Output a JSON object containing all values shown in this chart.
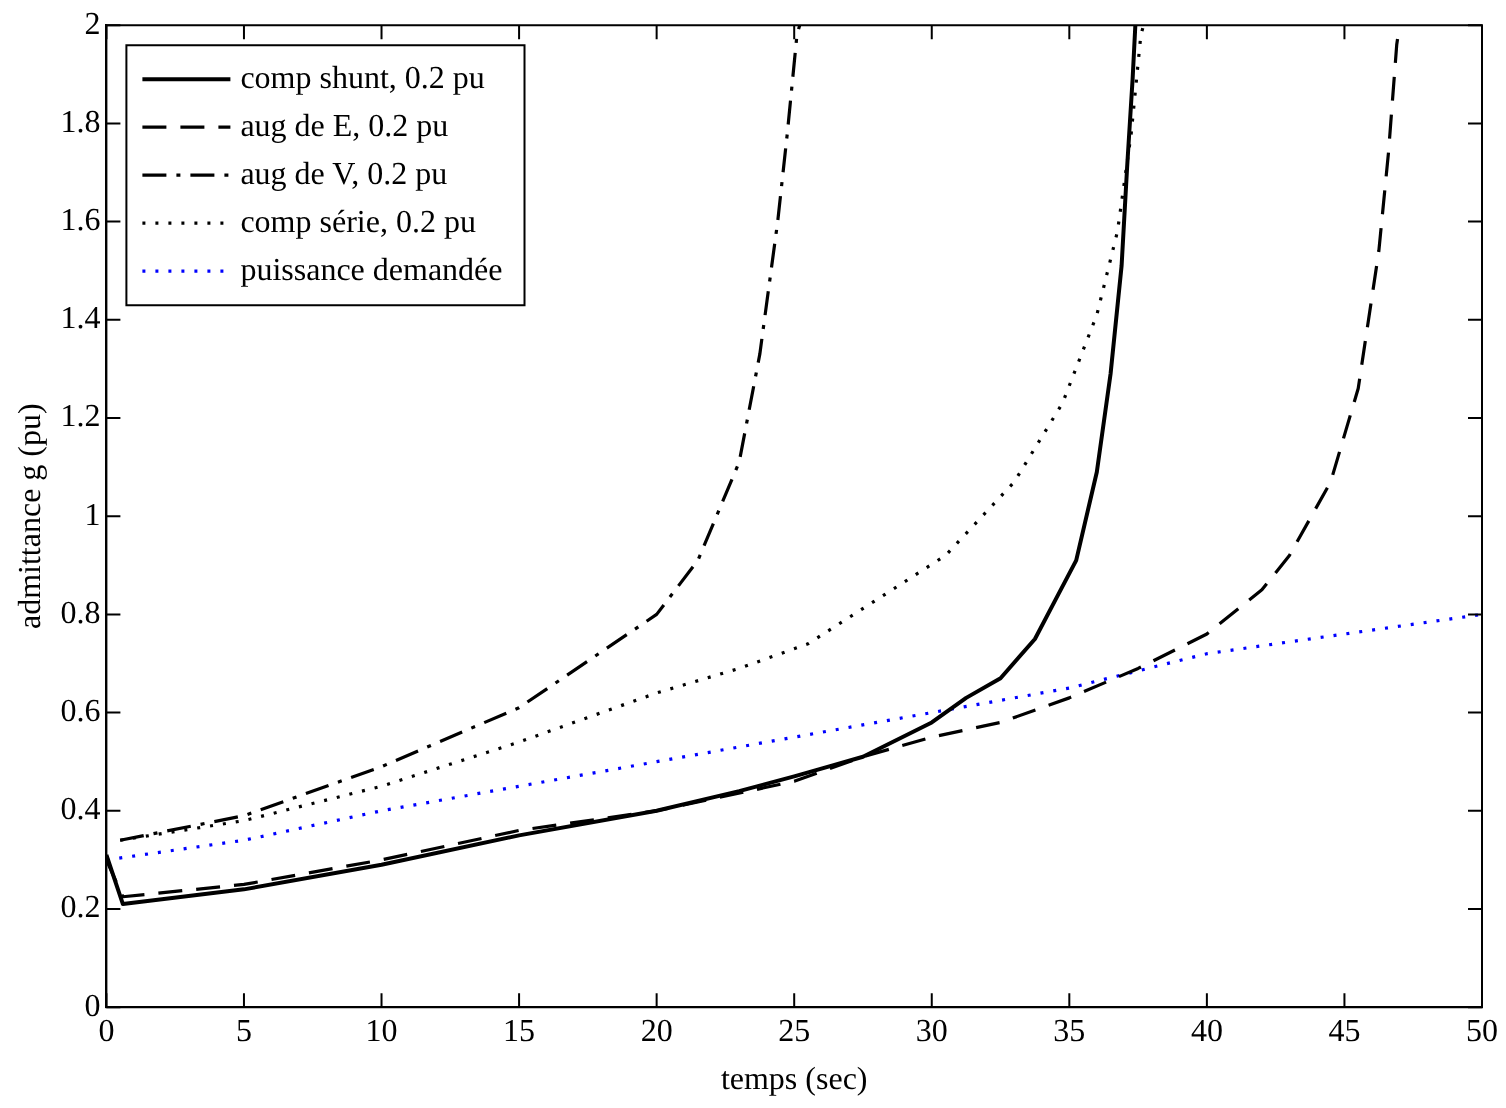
{
  "chart_data": {
    "type": "line",
    "xlabel": "temps (sec)",
    "ylabel": "admittance g (pu)",
    "xlim": [
      0,
      50
    ],
    "xticks": [
      0,
      5,
      10,
      15,
      20,
      25,
      30,
      35,
      40,
      45,
      50
    ],
    "ylim": [
      0,
      2
    ],
    "yticks": [
      0,
      {
        "value": 0.2,
        "label": "0.2"
      },
      {
        "value": 0.4,
        "label": "0.4"
      },
      {
        "value": 0.6,
        "label": "0.6"
      },
      {
        "value": 0.8,
        "label": "0.8"
      },
      1,
      {
        "value": 1.2,
        "label": "1.2"
      },
      {
        "value": 1.4,
        "label": "1.4"
      },
      {
        "value": 1.6,
        "label": "1.6"
      },
      {
        "value": 1.8,
        "label": "1.8"
      },
      2
    ],
    "grid": false,
    "legend": "top left",
    "marker": "none",
    "series": [
      {
        "name": "comp shunt, 0.2 pu",
        "color": "#000000",
        "line_style": "solid",
        "x": [
          0,
          0.6,
          5,
          10,
          15,
          20,
          23,
          25,
          27.5,
          30,
          31.25,
          32.5,
          33.75,
          34.5,
          35.25,
          36,
          36.5,
          36.9,
          37.1,
          37.3,
          37.4
        ],
        "values": [
          0.31,
          0.21,
          0.24,
          0.29,
          0.35,
          0.4,
          0.44,
          0.47,
          0.51,
          0.58,
          0.63,
          0.67,
          0.75,
          0.83,
          0.91,
          1.09,
          1.29,
          1.51,
          1.71,
          1.89,
          2
        ]
      },
      {
        "name": "aug de E, 0.2 pu",
        "color": "#000000",
        "line_style": "dashed",
        "x": [
          0,
          0.6,
          5,
          10,
          15,
          20,
          25,
          27.5,
          30,
          32.5,
          35,
          37.5,
          40,
          42,
          43,
          44.5,
          45.5,
          46.25,
          46.6,
          46.9,
          47
        ],
        "values": [
          0.3,
          0.225,
          0.25,
          0.3,
          0.36,
          0.4,
          0.46,
          0.51,
          0.55,
          0.58,
          0.63,
          0.69,
          0.76,
          0.85,
          0.92,
          1.07,
          1.26,
          1.54,
          1.74,
          1.96,
          2
        ]
      },
      {
        "name": "aug de V, 0.2 pu",
        "color": "#000000",
        "line_style": "dashdot",
        "x": [
          0.5,
          5,
          10,
          15,
          20,
          21.5,
          23,
          23.75,
          24.4,
          24.75,
          25.1,
          25.2
        ],
        "values": [
          0.34,
          0.39,
          0.49,
          0.61,
          0.8,
          0.91,
          1.11,
          1.33,
          1.6,
          1.78,
          1.98,
          2
        ]
      },
      {
        "name": "comp série, 0.2 pu",
        "color": "#000000",
        "line_style": "dotted",
        "x": [
          0.5,
          5,
          10,
          15,
          20,
          23,
          25.5,
          28,
          30.5,
          33,
          34.75,
          36,
          36.75,
          37.25,
          37.6,
          37.7
        ],
        "values": [
          0.34,
          0.38,
          0.45,
          0.54,
          0.64,
          0.69,
          0.74,
          0.83,
          0.92,
          1.07,
          1.23,
          1.41,
          1.58,
          1.78,
          1.98,
          2
        ]
      },
      {
        "name": "puissance demandée",
        "color": "#0000ff",
        "line_style": "dotted",
        "x": [
          0,
          5,
          10,
          15,
          20,
          25,
          30,
          35,
          40,
          45,
          50
        ],
        "values": [
          0.3,
          0.34,
          0.4,
          0.45,
          0.5,
          0.55,
          0.6,
          0.65,
          0.72,
          0.76,
          0.8
        ]
      }
    ]
  }
}
